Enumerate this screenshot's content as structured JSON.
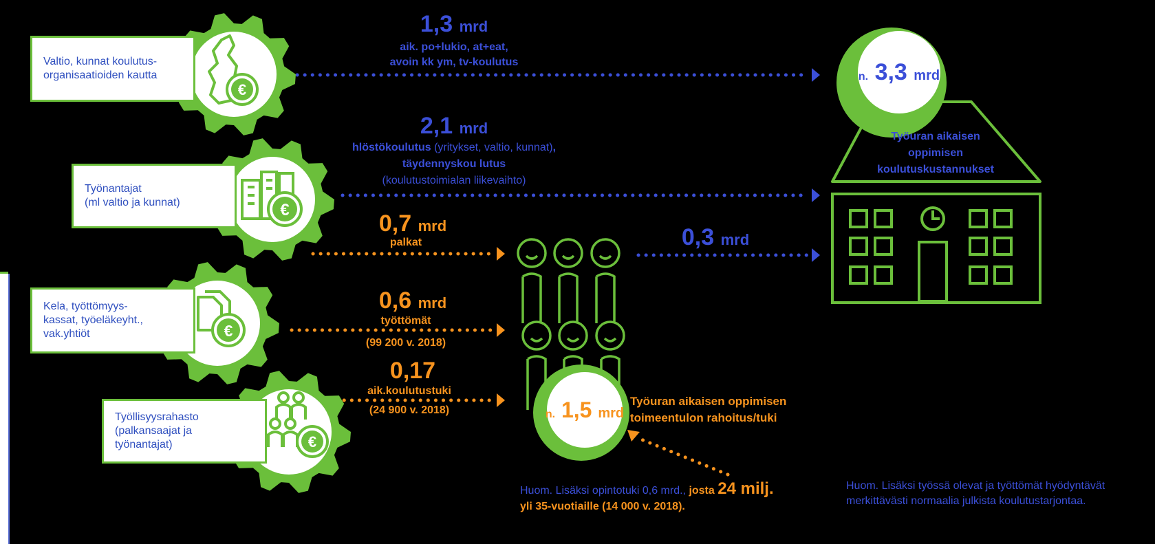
{
  "sources": [
    {
      "label": "Valtio, kunnat koulutus-\norganisaatioiden kautta",
      "icon": "finland-map-euro-icon"
    },
    {
      "label": "Työnantajat\n(ml valtio ja kunnat)",
      "icon": "buildings-euro-icon"
    },
    {
      "label": "Kela, työttömyys-\nkassat, työeläkeyht.,\nvak.yhtiöt",
      "icon": "documents-euro-icon"
    },
    {
      "label": "Työllisyysrahasto\n(palkansaajat ja\ntyönantajat)",
      "icon": "people-euro-icon"
    }
  ],
  "flows": {
    "f1": {
      "amount": "1,3",
      "unit": "mrd",
      "line1": "aik. po+lukio, at+eat,",
      "line2": "avoin kk ym, tv-koulutus"
    },
    "f2": {
      "amount": "2,1",
      "unit": "mrd",
      "line1a": "hlöstökoulutus",
      "line1b": " (yritykset, valtio, kunnat)",
      "line1c": ",",
      "line2": "täydennyskou lutus",
      "line3": "(koulutustoimialan liikevaihto)"
    },
    "f3": {
      "amount": "0,7",
      "unit": "mrd",
      "label": "palkat"
    },
    "f4": {
      "amount": "0,6",
      "unit": "mrd",
      "line1": "työttömät",
      "line2": "(99 200 v. 2018)"
    },
    "f5": {
      "amount": "0,17",
      "line1": "aik.koulutustuki",
      "line2": "(24 900 v. 2018)"
    },
    "f6": {
      "amount": "0,3",
      "unit": "mrd"
    }
  },
  "total_costs": {
    "prefix": "n.",
    "amount": "3,3",
    "unit": "mrd",
    "label1": "Työuran aikaisen",
    "label2": "oppimisen",
    "label3": "koulutuskustannukset"
  },
  "total_support": {
    "prefix": "n.",
    "amount": "1,5",
    "unit": "mrd",
    "label1": "Työuran aikaisen oppimisen",
    "label2": "toimeentulon rahoitus/tuki"
  },
  "notes": {
    "left_a": "Huom. Lisäksi opintotuki 0,6 mrd., ",
    "left_b": "josta ",
    "left_c": "24 milj.",
    "left_d": "yli 35-vuotiaille (14 000 v. 2018).",
    "right_1": "Huom. Lisäksi työssä olevat ja työttömät hyödyntävät",
    "right_2": "merkittävästi normaalia julkista koulutustarjontaa."
  },
  "colors": {
    "green": "#6bbf3b",
    "blue": "#3b4fd8",
    "orange": "#f7931e",
    "background": "#000000"
  }
}
